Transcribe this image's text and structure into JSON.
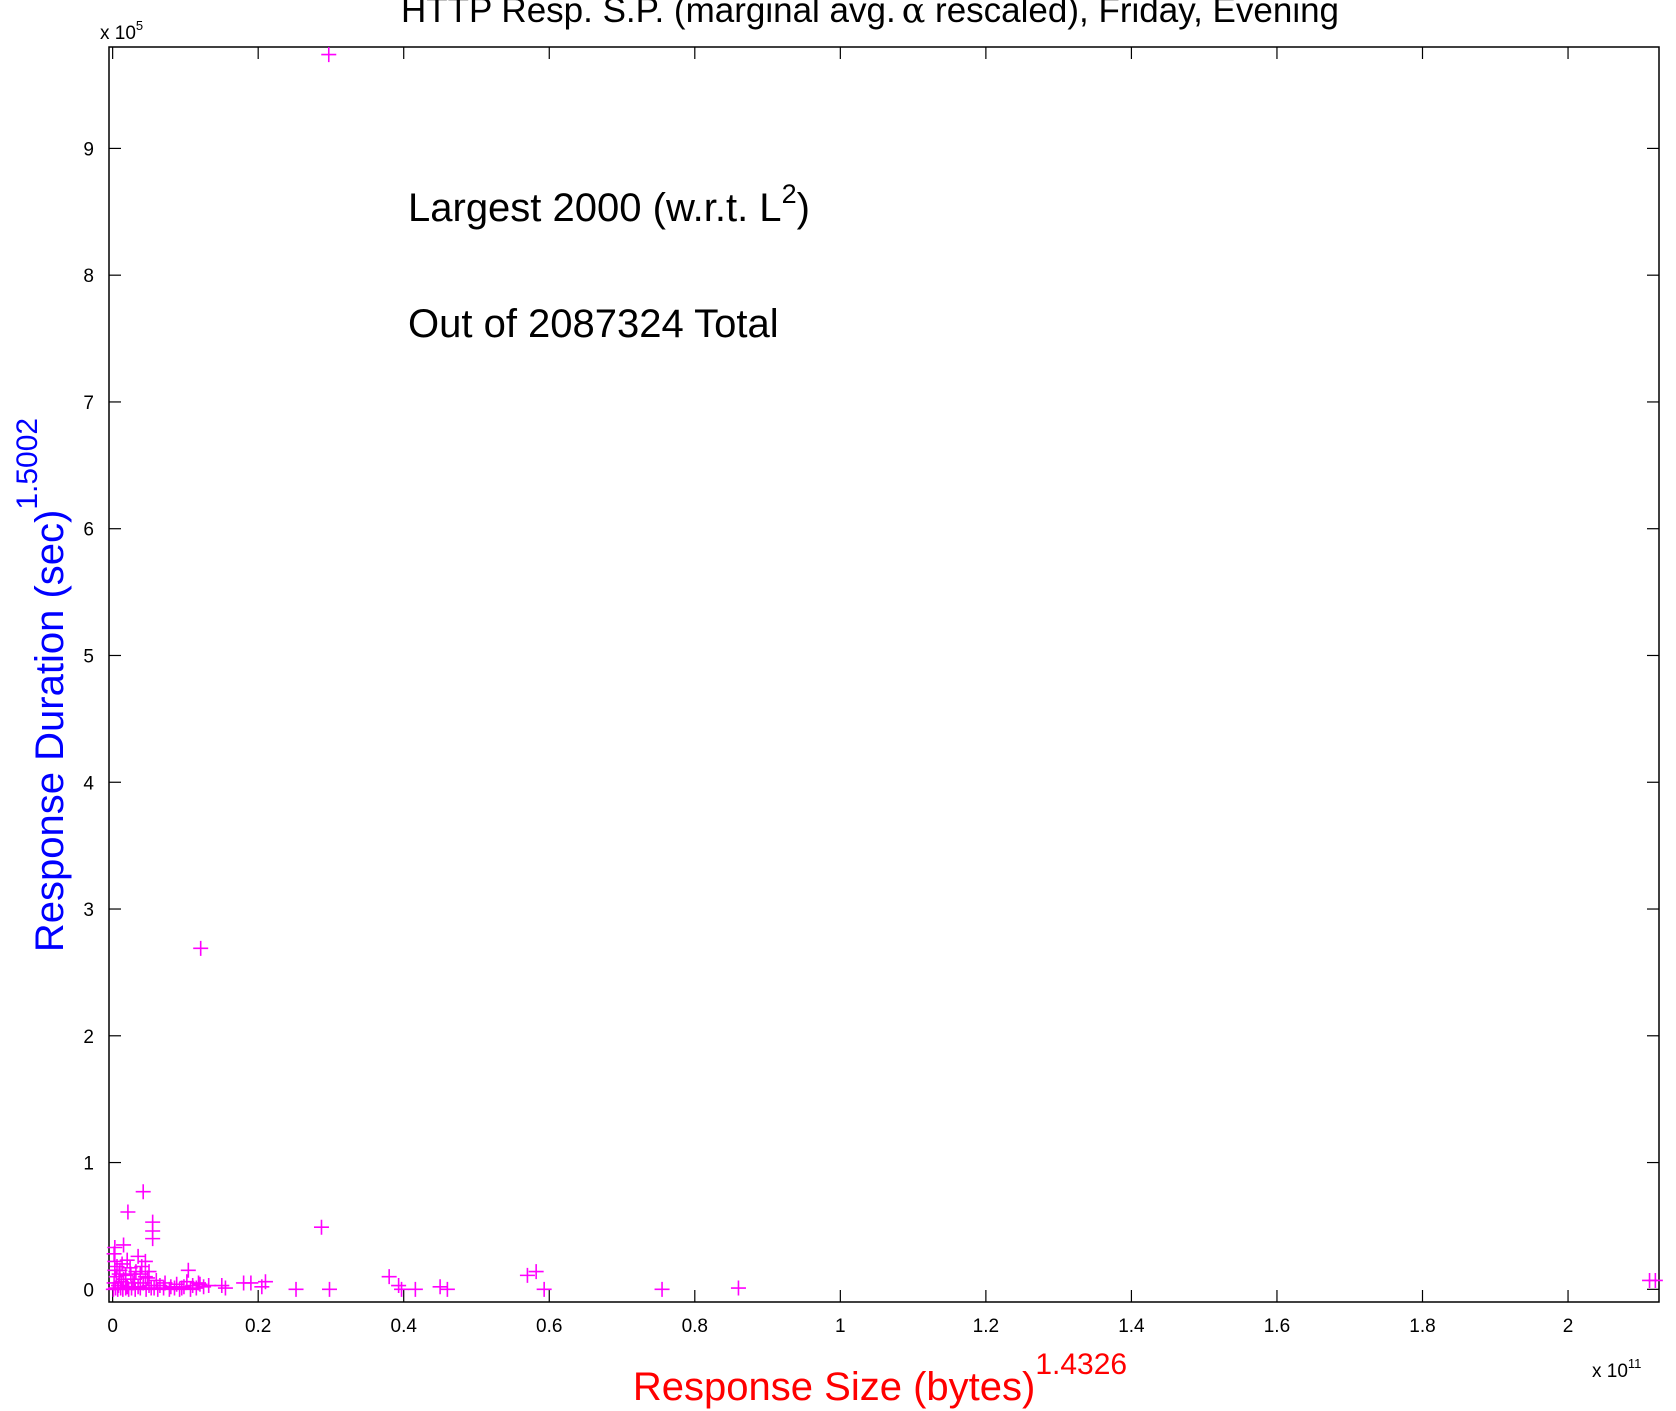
{
  "chart_data": {
    "type": "scatter",
    "title_main": "HTTP Resp. S.P. (marginal avg.",
    "title_alpha": "α",
    "title_rest": " rescaled), Friday, Evening",
    "xlabel": "Response Size (bytes)",
    "xlabel_exp": "1.4326",
    "ylabel": "Response Duration (sec)",
    "ylabel_exp": "1.5002",
    "x_multiplier_base": "x 10",
    "x_multiplier_exp": "11",
    "y_multiplier_base": "x 10",
    "y_multiplier_exp": "5",
    "xlim": [
      -0.005,
      2.125
    ],
    "ylim": [
      -0.1,
      9.8
    ],
    "x_ticks": [
      0,
      0.2,
      0.4,
      0.6,
      0.8,
      1,
      1.2,
      1.4,
      1.6,
      1.8,
      2
    ],
    "x_tick_labels": [
      "0",
      "0.2",
      "0.4",
      "0.6",
      "0.8",
      "1",
      "1.2",
      "1.4",
      "1.6",
      "1.8",
      "2"
    ],
    "y_ticks": [
      0,
      1,
      2,
      3,
      4,
      5,
      6,
      7,
      8,
      9
    ],
    "y_tick_labels": [
      "0",
      "1",
      "2",
      "3",
      "4",
      "5",
      "6",
      "7",
      "8",
      "9"
    ],
    "annotation_line1": "Largest 2000 (w.r.t. L",
    "annotation_line1_sup": "2",
    "annotation_line1_end": ")",
    "annotation_line2": "Out of 2087324 Total",
    "marker": "+",
    "marker_color": "#ff00ff",
    "title_color": "#000000",
    "xlabel_color": "#ff0000",
    "ylabel_color": "#0000ff",
    "grid": false,
    "series": [
      {
        "points": [
          [
            0.297,
            9.74
          ],
          [
            0.121,
            2.69
          ],
          [
            0.287,
            0.49
          ],
          [
            0.042,
            0.77
          ],
          [
            0.021,
            0.61
          ],
          [
            0.055,
            0.53
          ],
          [
            0.055,
            0.46
          ],
          [
            0.055,
            0.4
          ],
          [
            0.015,
            0.35
          ],
          [
            0.003,
            0.33
          ],
          [
            0.002,
            0.28
          ],
          [
            0.035,
            0.26
          ],
          [
            0.045,
            0.22
          ],
          [
            0.003,
            0.22
          ],
          [
            0.02,
            0.23
          ],
          [
            0.04,
            0.18
          ],
          [
            0.003,
            0.15
          ],
          [
            0.01,
            0.15
          ],
          [
            0.025,
            0.12
          ],
          [
            0.05,
            0.14
          ],
          [
            0.005,
            0.1
          ],
          [
            0.015,
            0.08
          ],
          [
            0.03,
            0.08
          ],
          [
            0.045,
            0.1
          ],
          [
            0.06,
            0.07
          ],
          [
            0.002,
            0.05
          ],
          [
            0.008,
            0.03
          ],
          [
            0.012,
            0.06
          ],
          [
            0.02,
            0.02
          ],
          [
            0.028,
            0.05
          ],
          [
            0.035,
            0.02
          ],
          [
            0.042,
            0.05
          ],
          [
            0.05,
            0.03
          ],
          [
            0.057,
            0.01
          ],
          [
            0.065,
            0.03
          ],
          [
            0.072,
            0.05
          ],
          [
            0.08,
            0.02
          ],
          [
            0.088,
            0.04
          ],
          [
            0.095,
            0.01
          ],
          [
            0.102,
            0.06
          ],
          [
            0.104,
            0.15
          ],
          [
            0.11,
            0.03
          ],
          [
            0.118,
            0.05
          ],
          [
            0.125,
            0.02
          ],
          [
            0.132,
            0.03
          ],
          [
            0.15,
            0.03
          ],
          [
            0.155,
            0.01
          ],
          [
            0.18,
            0.05
          ],
          [
            0.19,
            0.05
          ],
          [
            0.205,
            0.02
          ],
          [
            0.21,
            0.06
          ],
          [
            0.252,
            0.0
          ],
          [
            0.298,
            0.0
          ],
          [
            0.38,
            0.1
          ],
          [
            0.393,
            0.03
          ],
          [
            0.397,
            0.0
          ],
          [
            0.416,
            0.0
          ],
          [
            0.45,
            0.02
          ],
          [
            0.46,
            0.0
          ],
          [
            0.57,
            0.11
          ],
          [
            0.582,
            0.14
          ],
          [
            0.593,
            0.0
          ],
          [
            0.755,
            0.0
          ],
          [
            0.86,
            0.01
          ],
          [
            2.112,
            0.07
          ],
          [
            2.12,
            0.07
          ],
          [
            0.001,
            0.0
          ],
          [
            0.004,
            0.01
          ],
          [
            0.007,
            0.0
          ],
          [
            0.011,
            0.01
          ],
          [
            0.014,
            0.0
          ],
          [
            0.018,
            0.01
          ],
          [
            0.022,
            0.0
          ],
          [
            0.026,
            0.01
          ],
          [
            0.031,
            0.0
          ],
          [
            0.038,
            0.01
          ],
          [
            0.046,
            0.0
          ],
          [
            0.053,
            0.01
          ],
          [
            0.062,
            0.0
          ],
          [
            0.07,
            0.01
          ],
          [
            0.078,
            0.0
          ],
          [
            0.085,
            0.01
          ],
          [
            0.092,
            0.0
          ],
          [
            0.098,
            0.02
          ],
          [
            0.107,
            0.0
          ],
          [
            0.115,
            0.01
          ],
          [
            0.12,
            0.04
          ],
          [
            0.009,
            0.12
          ],
          [
            0.018,
            0.11
          ],
          [
            0.032,
            0.14
          ],
          [
            0.038,
            0.12
          ],
          [
            0.048,
            0.09
          ],
          [
            0.006,
            0.18
          ],
          [
            0.013,
            0.2
          ],
          [
            0.024,
            0.17
          ]
        ]
      }
    ]
  }
}
